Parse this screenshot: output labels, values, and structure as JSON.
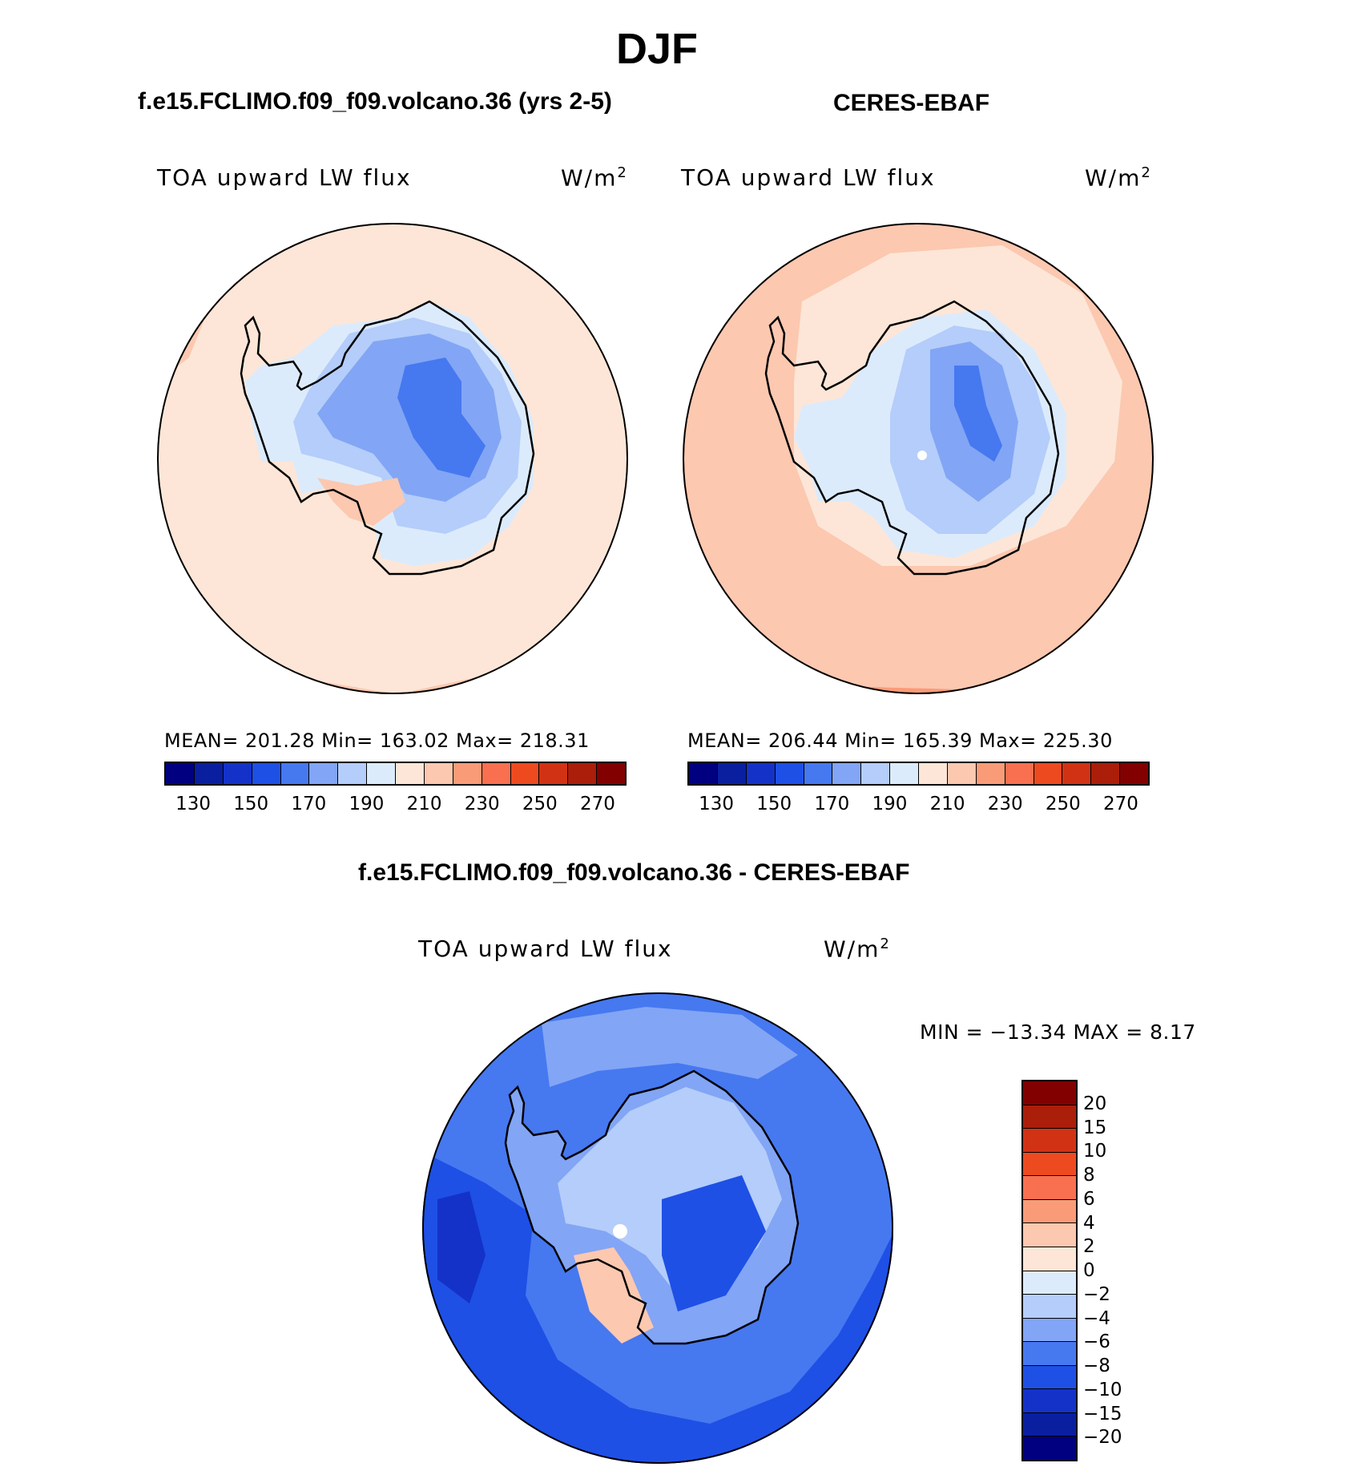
{
  "figure_title": "DJF",
  "panels": {
    "model": {
      "title": "f.e15.FCLIMO.f09_f09.volcano.36 (yrs 2-5)",
      "variable": "TOA upward LW flux",
      "units": "W/m",
      "units_exp": "2",
      "stats_text": "MEAN= 201.28   Min= 163.02   Max= 218.31"
    },
    "obs": {
      "title": "CERES-EBAF",
      "variable": "TOA upward LW flux",
      "units": "W/m",
      "units_exp": "2",
      "stats_text": "MEAN= 206.44   Min= 165.39   Max= 225.30"
    },
    "diff": {
      "title": "f.e15.FCLIMO.f09_f09.volcano.36 - CERES-EBAF",
      "variable": "TOA upward LW flux",
      "units": "W/m",
      "units_exp": "2",
      "minmax_text": "MIN = −13.34 MAX =    8.17"
    }
  },
  "colorbars": {
    "abs": {
      "colors": [
        "#000080",
        "#0a1ea0",
        "#1432c8",
        "#1e50e6",
        "#4678f0",
        "#82a5f5",
        "#b4cdfa",
        "#dcebfc",
        "#fde6d7",
        "#fcc8b0",
        "#fa9b78",
        "#f87050",
        "#ee4a20",
        "#d23214",
        "#aa1e0a",
        "#820000"
      ],
      "tick_labels": [
        "130",
        "150",
        "170",
        "190",
        "210",
        "230",
        "250",
        "270"
      ]
    },
    "diff": {
      "colors_top_to_bottom": [
        "#820000",
        "#aa1e0a",
        "#d23214",
        "#ee4a20",
        "#f87050",
        "#fa9b78",
        "#fcc8b0",
        "#fde6d7",
        "#dcebfc",
        "#b4cdfa",
        "#82a5f5",
        "#4678f0",
        "#1e50e6",
        "#1432c8",
        "#0a1ea0",
        "#000080"
      ],
      "tick_labels": [
        "20",
        "15",
        "10",
        "8",
        "6",
        "4",
        "2",
        "0",
        "−2",
        "−4",
        "−6",
        "−8",
        "−10",
        "−15",
        "−20"
      ]
    }
  },
  "colors": {
    "model_bg": "#fde6d7",
    "model_bg2": "#fcc8b0",
    "obs_bg": "#fcc8b0",
    "obs_bg2": "#fa9b78",
    "obs_ring": "#fde6d7",
    "ice_outer": "#dcebfc",
    "ice_mid": "#b4cdfa",
    "ice_inner": "#82a5f5",
    "ice_core": "#4678f0",
    "diff_bg": "#4678f0",
    "diff_mid": "#82a5f5",
    "diff_dark": "#1e50e6",
    "diff_light": "#b4cdfa"
  }
}
